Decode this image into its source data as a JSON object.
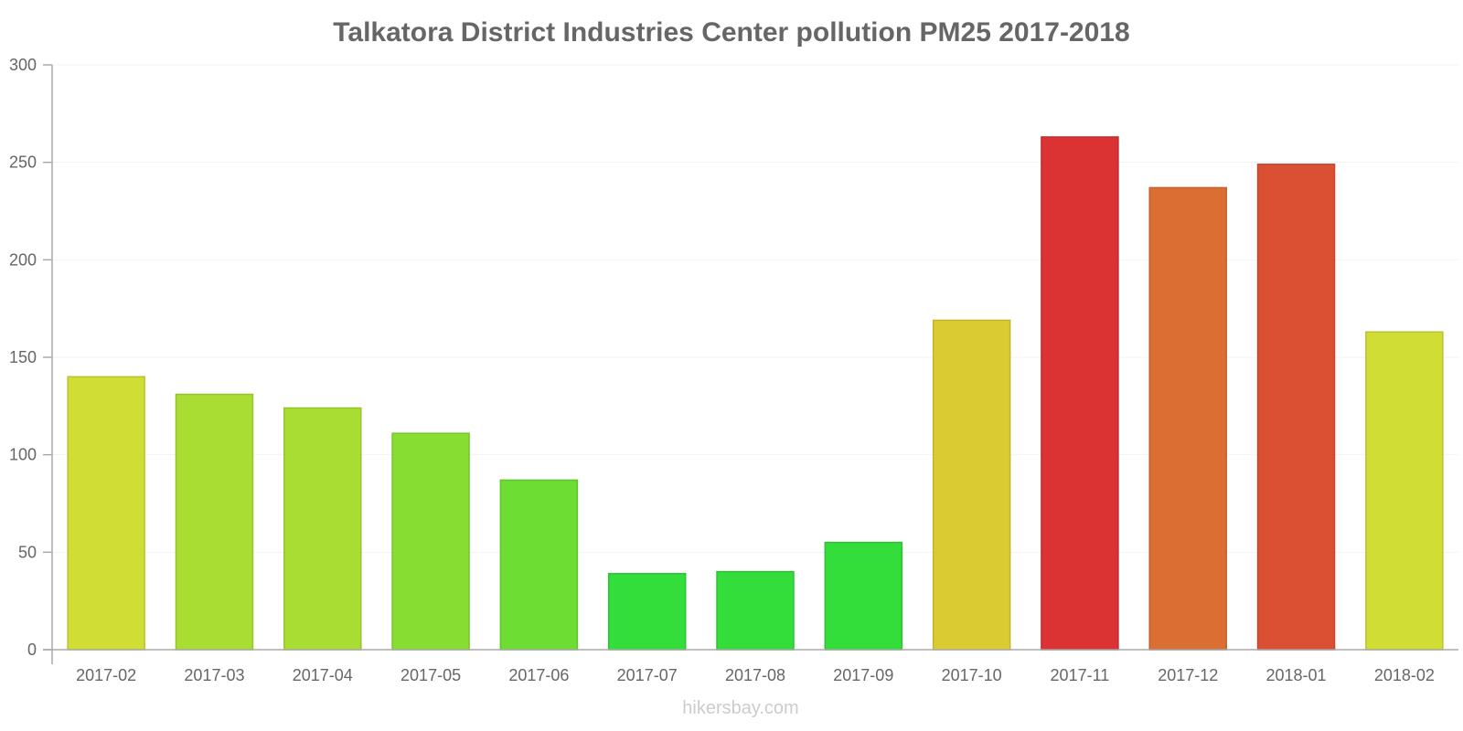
{
  "chart_data": {
    "type": "bar",
    "title": "Talkatora District Industries Center pollution PM25 2017-2018",
    "xlabel": "",
    "ylabel": "",
    "ylim": [
      0,
      300
    ],
    "yticks": [
      0,
      50,
      100,
      150,
      200,
      250,
      300
    ],
    "grid": true,
    "categories": [
      "2017-02",
      "2017-03",
      "2017-04",
      "2017-05",
      "2017-06",
      "2017-07",
      "2017-08",
      "2017-09",
      "2017-10",
      "2017-11",
      "2017-12",
      "2018-01",
      "2018-02"
    ],
    "values": [
      140,
      131,
      124,
      111,
      87,
      39,
      40,
      55,
      169,
      263,
      237,
      249,
      163
    ],
    "colors": [
      "#cfdd34",
      "#aadd33",
      "#aadd33",
      "#88dd33",
      "#6ddd33",
      "#33dd3a",
      "#33dd3a",
      "#33dd3a",
      "#dbcb33",
      "#db3333",
      "#db6e33",
      "#db5033",
      "#cfdd34"
    ],
    "border_colors": [
      "#b7c42e",
      "#96c42d",
      "#96c42d",
      "#78c42d",
      "#61c42d",
      "#2dc433",
      "#2dc433",
      "#2dc433",
      "#c2b42d",
      "#c22d2d",
      "#c2612d",
      "#c2472d",
      "#b7c42e"
    ]
  },
  "watermark": "hikersbay.com"
}
